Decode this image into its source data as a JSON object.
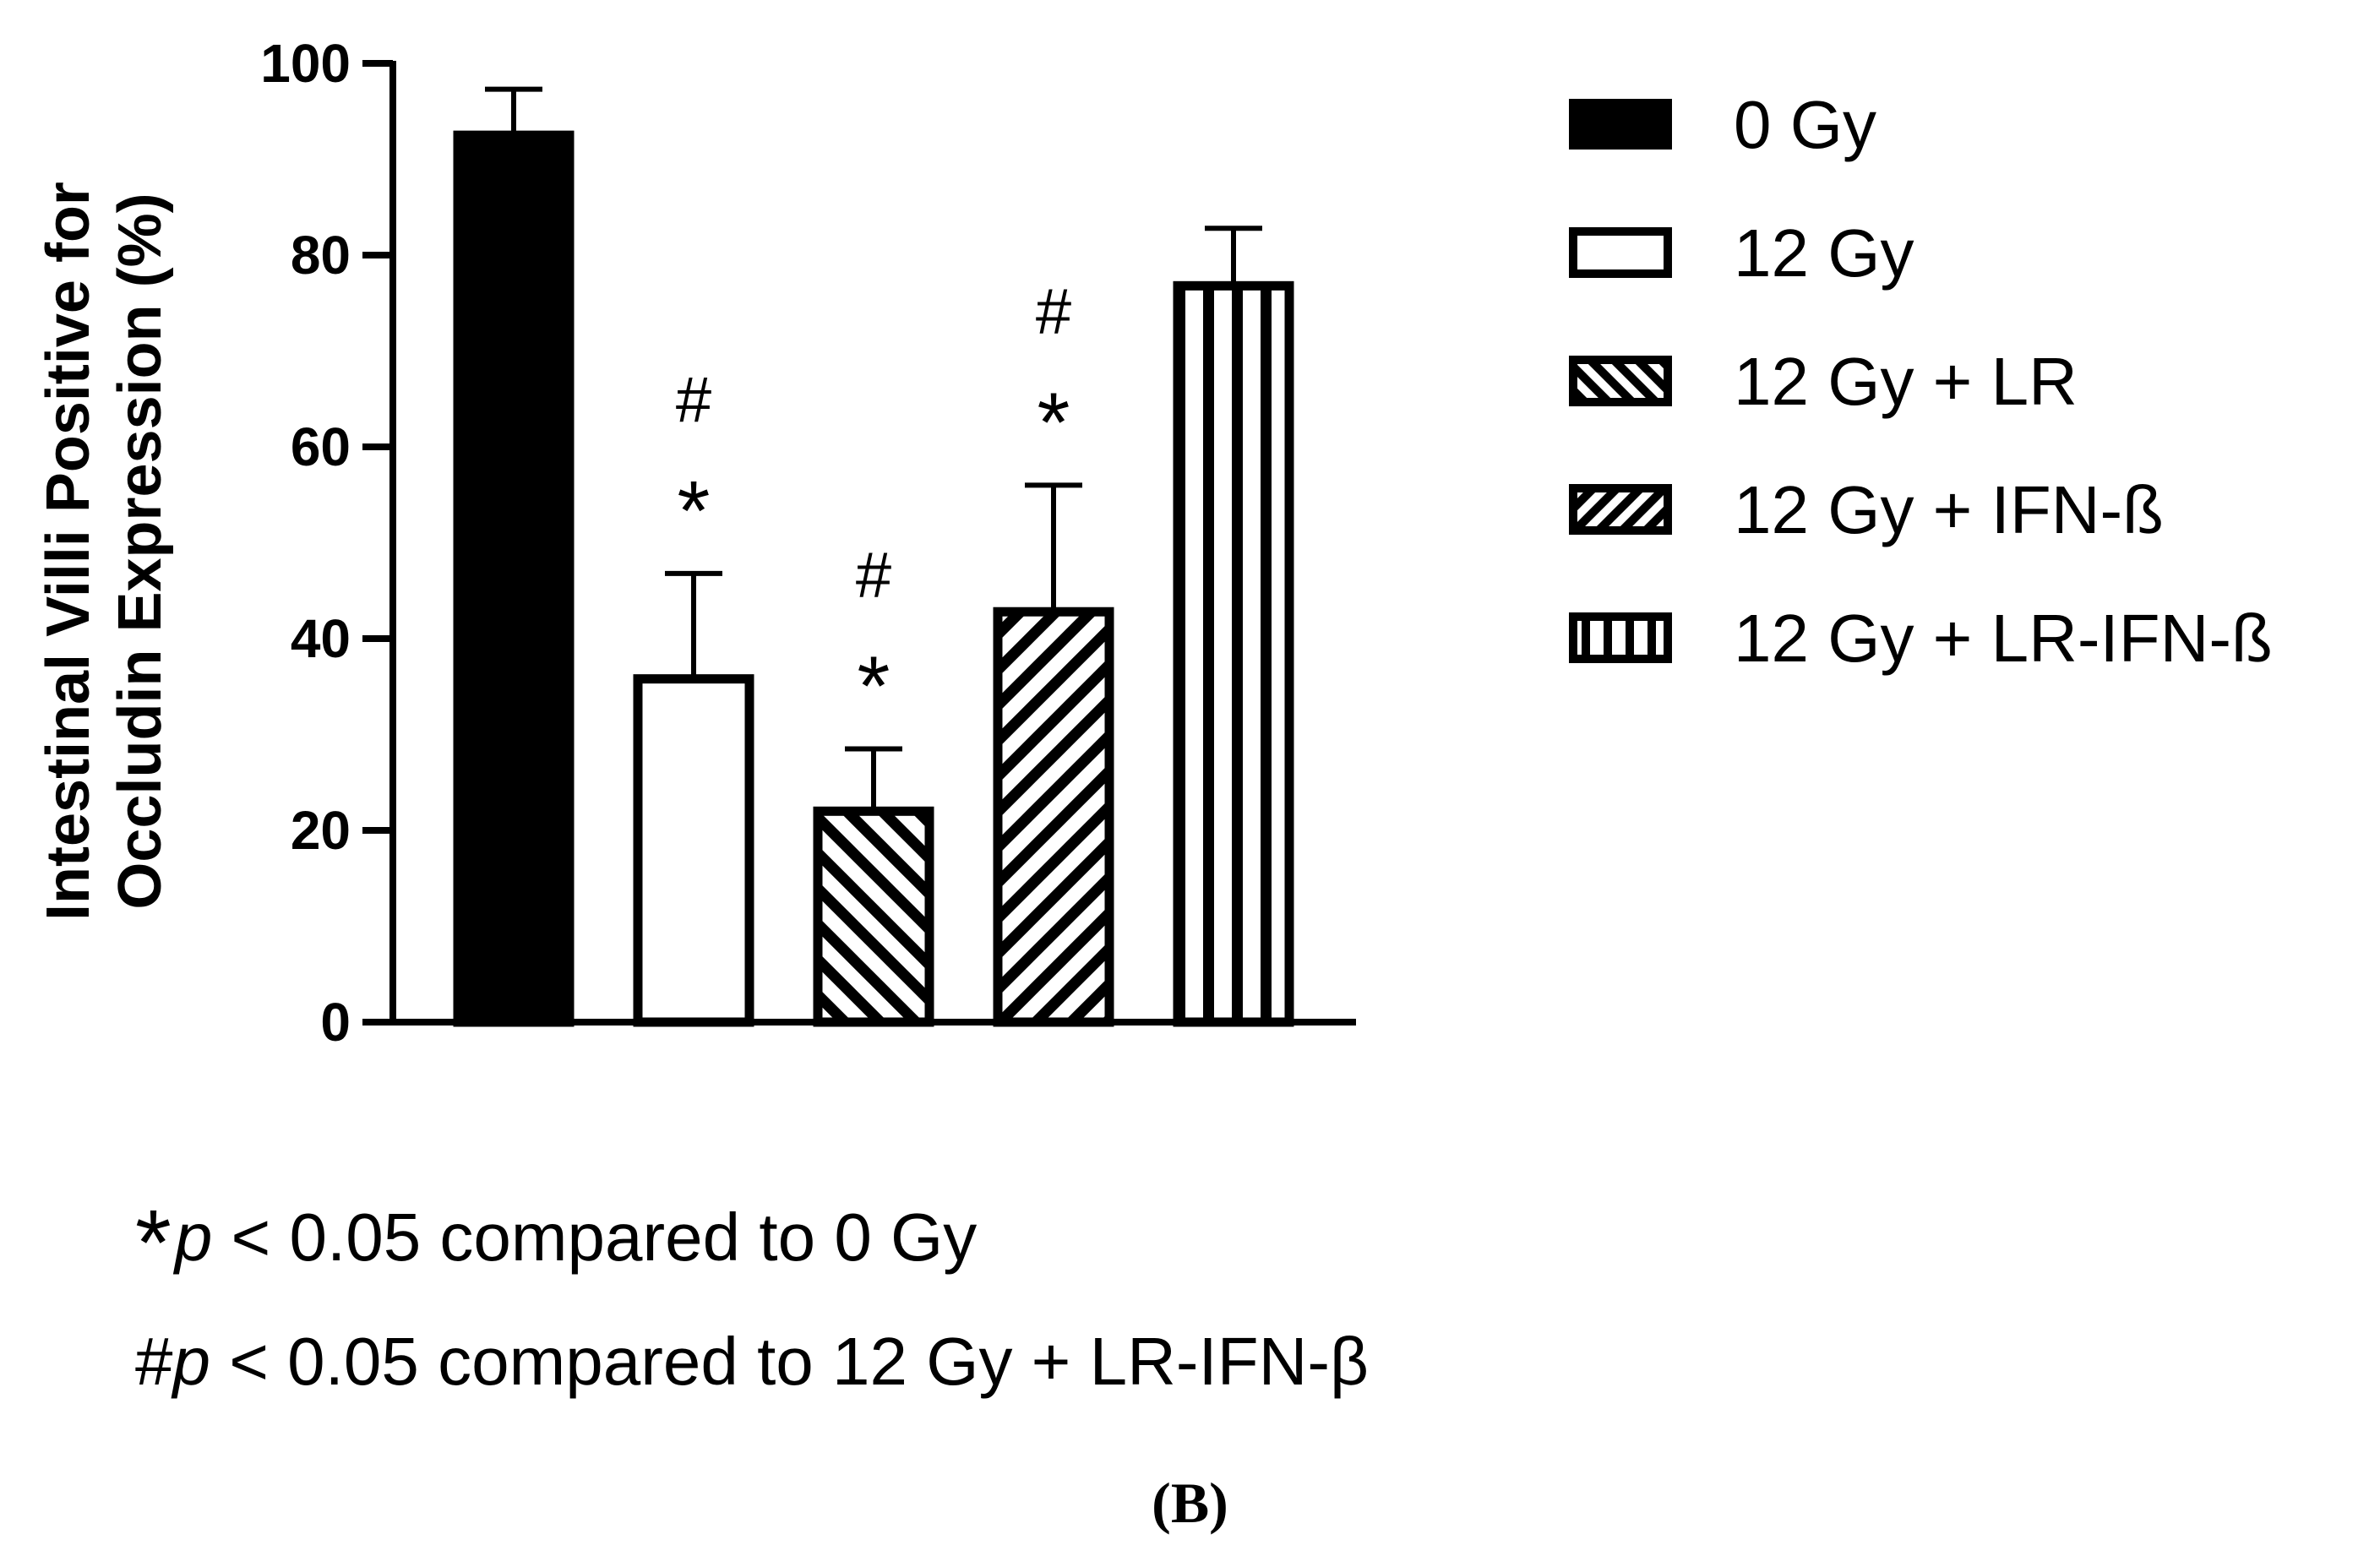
{
  "chart_data": {
    "type": "bar",
    "title": "",
    "xlabel": "",
    "ylabel_lines": [
      "Intestinal Villi Positive for",
      "Occludin Expression (%)"
    ],
    "ylim": [
      0,
      100
    ],
    "yticks": [
      0,
      20,
      40,
      60,
      80,
      100
    ],
    "grid": false,
    "legend_position": "right",
    "categories": [
      "0 Gy",
      "12 Gy",
      "12 Gy + LR",
      "12 Gy + IFN-ß",
      "12 Gy + LR-IFN-ß"
    ],
    "values": [
      92.5,
      35.8,
      22.0,
      42.8,
      76.8
    ],
    "error_upper": [
      97.3,
      46.8,
      28.5,
      56.0,
      82.8
    ],
    "fill_patterns": [
      "solid",
      "empty",
      "diagonal-down",
      "diagonal-up",
      "vertical"
    ],
    "significance": [
      [],
      [
        "#",
        "*"
      ],
      [
        "#",
        "*"
      ],
      [
        "#",
        "*"
      ],
      []
    ]
  },
  "footnotes": {
    "line1_star": "*",
    "line1_p": "p",
    "line1_rest": " < 0.05 compared to 0 Gy",
    "line2_hash": "#",
    "line2_p": "p",
    "line2_rest": " < 0.05 compared to 12 Gy + LR-IFN-β"
  },
  "panel_label": "(B)",
  "colors": {
    "ink": "#000000",
    "background": "#ffffff"
  }
}
